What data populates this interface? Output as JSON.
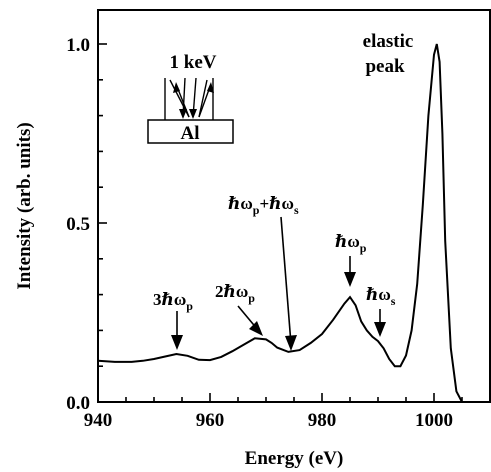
{
  "chart_data": {
    "type": "line",
    "xlabel": "Energy (eV)",
    "ylabel": "Intensity (arb. units)",
    "xlim": [
      940,
      1010
    ],
    "ylim": [
      0.0,
      1.1
    ],
    "x_ticks": [
      940,
      960,
      980,
      1000
    ],
    "y_ticks": [
      0.0,
      0.5,
      1.0
    ],
    "x_tick_labels": [
      "940",
      "960",
      "980",
      "1000"
    ],
    "y_tick_labels": [
      "0.0",
      "0.5",
      "1.0"
    ],
    "grid": false,
    "series": [
      {
        "x": [
          940,
          943,
          946,
          948,
          950,
          952,
          954,
          956,
          958,
          960,
          962,
          964,
          966,
          968,
          970,
          971,
          972,
          974,
          976,
          978,
          980,
          982,
          984,
          985,
          986,
          987,
          988,
          989,
          990,
          991,
          992,
          993,
          994,
          995,
          996,
          997,
          998,
          999,
          1000,
          1000.5,
          1001,
          1001.5,
          1002,
          1003,
          1004,
          1005,
          1007,
          1010
        ],
        "y": [
          0.115,
          0.112,
          0.112,
          0.115,
          0.12,
          0.127,
          0.134,
          0.129,
          0.118,
          0.117,
          0.126,
          0.142,
          0.16,
          0.178,
          0.175,
          0.165,
          0.152,
          0.14,
          0.145,
          0.165,
          0.19,
          0.23,
          0.275,
          0.293,
          0.27,
          0.225,
          0.2,
          0.182,
          0.17,
          0.15,
          0.12,
          0.1,
          0.1,
          0.13,
          0.2,
          0.33,
          0.55,
          0.8,
          0.97,
          1.0,
          0.95,
          0.75,
          0.45,
          0.15,
          0.03,
          0.0,
          0.0,
          0.0
        ]
      }
    ],
    "annotations": [
      {
        "text": "elastic",
        "x": 1000.5,
        "y": 1.0
      },
      {
        "text": "peak",
        "x": 1000.5,
        "y": 1.0
      },
      {
        "text": "3ℏω",
        "sub": "p",
        "x": 954,
        "y": 0.135
      },
      {
        "text": "2ℏω",
        "sub": "p",
        "x": 969.5,
        "y": 0.175
      },
      {
        "text": "ℏω",
        "sub": "p",
        "text2": "+ℏω",
        "sub2": "s",
        "x": 974.5,
        "y": 0.142
      },
      {
        "text": "ℏω",
        "sub": "p",
        "x": 985,
        "y": 0.29
      },
      {
        "text": "ℏω",
        "sub": "s",
        "x": 990,
        "y": 0.17
      }
    ],
    "inset": {
      "energy_label": "1 keV",
      "target_label": "Al"
    }
  }
}
